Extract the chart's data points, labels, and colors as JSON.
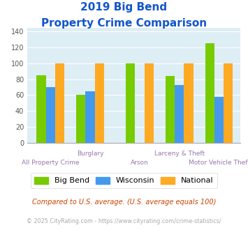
{
  "title_line1": "2019 Big Bend",
  "title_line2": "Property Crime Comparison",
  "categories": [
    "All Property Crime",
    "Burglary",
    "Arson",
    "Larceny & Theft",
    "Motor Vehicle Theft"
  ],
  "series": {
    "Big Bend": [
      85,
      60,
      100,
      84,
      125
    ],
    "Wisconsin": [
      70,
      65,
      null,
      73,
      58
    ],
    "National": [
      100,
      100,
      100,
      100,
      100
    ]
  },
  "colors": {
    "Big Bend": "#77cc00",
    "Wisconsin": "#4499ee",
    "National": "#ffaa22"
  },
  "ylim": [
    0,
    145
  ],
  "yticks": [
    0,
    20,
    40,
    60,
    80,
    100,
    120,
    140
  ],
  "plot_bg": "#ddeef5",
  "title_color": "#1155cc",
  "xlabel_color": "#9977aa",
  "footnote1": "Compared to U.S. average. (U.S. average equals 100)",
  "footnote2": "© 2025 CityRating.com - https://www.cityrating.com/crime-statistics/",
  "footnote1_color": "#cc4400",
  "footnote2_color": "#aaaaaa",
  "bar_width": 0.28
}
